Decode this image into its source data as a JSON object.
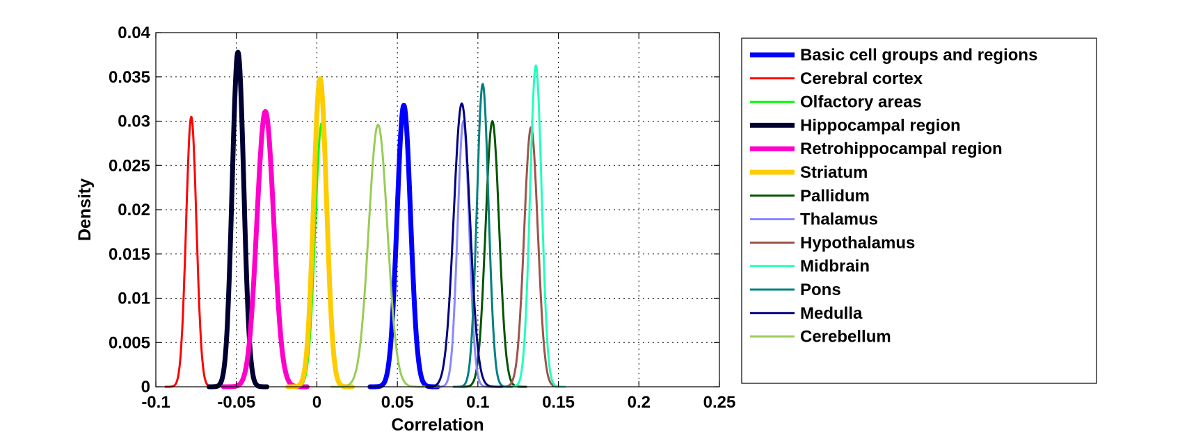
{
  "chart_data": {
    "type": "line",
    "title": "",
    "xlabel": "Correlation",
    "ylabel": "Density",
    "xlim": [
      -0.1,
      0.25
    ],
    "ylim": [
      0,
      0.04
    ],
    "xticks": [
      -0.1,
      -0.05,
      0,
      0.05,
      0.1,
      0.15,
      0.2,
      0.25
    ],
    "xtick_labels": [
      "-0.1",
      "-0.05",
      "0",
      "0.05",
      "0.1",
      "0.15",
      "0.2",
      "0.25"
    ],
    "yticks": [
      0,
      0.005,
      0.01,
      0.015,
      0.02,
      0.025,
      0.03,
      0.035,
      0.04
    ],
    "ytick_labels": [
      "0",
      "0.005",
      "0.01",
      "0.015",
      "0.02",
      "0.025",
      "0.03",
      "0.035",
      "0.04"
    ],
    "grid": true,
    "legend_position": "outside-right",
    "series": [
      {
        "name": "Basic cell groups and regions",
        "color": "#0000ff",
        "bold": true,
        "peak_x": 0.054,
        "peak_y": 0.0318,
        "sigma": 0.0042
      },
      {
        "name": "Cerebral cortex",
        "color": "#ff0000",
        "bold": false,
        "peak_x": -0.078,
        "peak_y": 0.0305,
        "sigma": 0.0032
      },
      {
        "name": "Olfactory areas",
        "color": "#00ff00",
        "bold": false,
        "peak_x": 0.003,
        "peak_y": 0.0298,
        "sigma": 0.004
      },
      {
        "name": "Hippocampal region",
        "color": "#000033",
        "bold": true,
        "peak_x": -0.049,
        "peak_y": 0.0378,
        "sigma": 0.0036
      },
      {
        "name": "Retrohippocampal region",
        "color": "#ff00cc",
        "bold": true,
        "peak_x": -0.032,
        "peak_y": 0.0311,
        "sigma": 0.0052
      },
      {
        "name": "Striatum",
        "color": "#ffcc00",
        "bold": true,
        "peak_x": 0.002,
        "peak_y": 0.0348,
        "sigma": 0.004
      },
      {
        "name": "Pallidum",
        "color": "#005500",
        "bold": false,
        "peak_x": 0.109,
        "peak_y": 0.03,
        "sigma": 0.0042
      },
      {
        "name": "Thalamus",
        "color": "#8888ff",
        "bold": false,
        "peak_x": 0.091,
        "peak_y": 0.03,
        "sigma": 0.0036
      },
      {
        "name": "Hypothalamus",
        "color": "#a0524a",
        "bold": false,
        "peak_x": 0.133,
        "peak_y": 0.0293,
        "sigma": 0.0042
      },
      {
        "name": "Midbrain",
        "color": "#22ffbb",
        "bold": false,
        "peak_x": 0.136,
        "peak_y": 0.0363,
        "sigma": 0.0036
      },
      {
        "name": "Pons",
        "color": "#008080",
        "bold": false,
        "peak_x": 0.103,
        "peak_y": 0.0342,
        "sigma": 0.0036
      },
      {
        "name": "Medulla",
        "color": "#000080",
        "bold": false,
        "peak_x": 0.09,
        "peak_y": 0.032,
        "sigma": 0.005
      },
      {
        "name": "Cerebellum",
        "color": "#99cc55",
        "bold": false,
        "peak_x": 0.038,
        "peak_y": 0.0296,
        "sigma": 0.0058
      }
    ]
  }
}
